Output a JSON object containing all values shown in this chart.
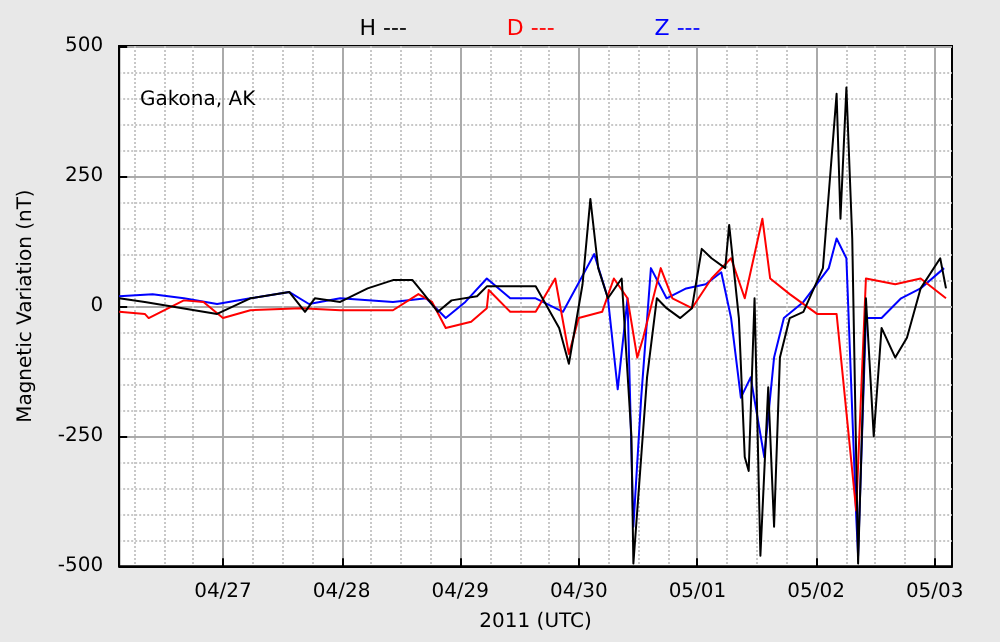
{
  "chart_data": {
    "type": "line",
    "xlabel": "2011 (UTC)",
    "ylabel": "Magnetic Variation (nT)",
    "annotations": [
      "Gakona, AK"
    ],
    "legend": "top",
    "grid": true,
    "marker": "none",
    "line_style": "solid",
    "xlim": [
      "2011-04-26T03:00",
      "2011-05-03T03:30"
    ],
    "xticks": [
      {
        "value": "2011-04-26T06:00",
        "label": null
      },
      {
        "value": "2011-04-26T12:00",
        "label": null
      },
      {
        "value": "2011-04-26T18:00",
        "label": null
      },
      {
        "value": "2011-04-27",
        "label": "04/27"
      },
      {
        "value": "2011-04-27T06:00",
        "label": null
      },
      {
        "value": "2011-04-27T12:00",
        "label": null
      },
      {
        "value": "2011-04-27T18:00",
        "label": null
      },
      {
        "value": "2011-04-28",
        "label": "04/28"
      },
      {
        "value": "2011-04-28T06:00",
        "label": null
      },
      {
        "value": "2011-04-28T12:00",
        "label": null
      },
      {
        "value": "2011-04-28T18:00",
        "label": null
      },
      {
        "value": "2011-04-29",
        "label": "04/29"
      },
      {
        "value": "2011-04-29T06:00",
        "label": null
      },
      {
        "value": "2011-04-29T12:00",
        "label": null
      },
      {
        "value": "2011-04-29T18:00",
        "label": null
      },
      {
        "value": "2011-04-30",
        "label": "04/30"
      },
      {
        "value": "2011-04-30T06:00",
        "label": null
      },
      {
        "value": "2011-04-30T12:00",
        "label": null
      },
      {
        "value": "2011-04-30T18:00",
        "label": null
      },
      {
        "value": "2011-05-01",
        "label": "05/01"
      },
      {
        "value": "2011-05-01T06:00",
        "label": null
      },
      {
        "value": "2011-05-01T12:00",
        "label": null
      },
      {
        "value": "2011-05-01T18:00",
        "label": null
      },
      {
        "value": "2011-05-02",
        "label": "05/02"
      },
      {
        "value": "2011-05-02T06:00",
        "label": null
      },
      {
        "value": "2011-05-02T12:00",
        "label": null
      },
      {
        "value": "2011-05-02T18:00",
        "label": null
      },
      {
        "value": "2011-05-03",
        "label": "05/03"
      }
    ],
    "ylim": [
      -500,
      500
    ],
    "yticks": [
      -500,
      {
        "value": -450,
        "label": null
      },
      {
        "value": -400,
        "label": null
      },
      {
        "value": -350,
        "label": null
      },
      {
        "value": -300,
        "label": null
      },
      -250,
      {
        "value": -200,
        "label": null
      },
      {
        "value": -150,
        "label": null
      },
      {
        "value": -100,
        "label": null
      },
      {
        "value": -50,
        "label": null
      },
      0,
      {
        "value": 50,
        "label": null
      },
      {
        "value": 100,
        "label": null
      },
      {
        "value": 150,
        "label": null
      },
      {
        "value": 200,
        "label": null
      },
      250,
      {
        "value": 300,
        "label": null
      },
      {
        "value": 350,
        "label": null
      },
      {
        "value": 400,
        "label": null
      },
      {
        "value": 450,
        "label": null
      },
      500
    ],
    "series": [
      {
        "name": "H ---",
        "color": "#000000",
        "x": [
          "2011-04-26T03:00",
          "2011-04-26T08:11",
          "2011-04-26T20:03",
          "2011-04-26T22:49",
          "2011-04-27T05:32",
          "2011-04-27T13:26",
          "2011-04-27T16:36",
          "2011-04-27T18:35",
          "2011-04-27T23:43",
          "2011-04-28T05:16",
          "2011-04-28T10:24",
          "2011-04-28T14:21",
          "2011-04-28T16:20",
          "2011-04-28T19:29",
          "2011-04-28T22:15",
          "2011-04-29T03:24",
          "2011-04-29T05:23",
          "2011-04-29T10:07",
          "2011-04-29T15:16",
          "2011-04-29T20:01",
          "2011-04-29T21:59",
          "2011-04-30T00:45",
          "2011-04-30T02:20",
          "2011-04-30T03:55",
          "2011-04-30T05:53",
          "2011-04-30T08:40",
          "2011-04-30T10:38",
          "2011-04-30T11:02",
          "2011-04-30T12:37",
          "2011-04-30T13:48",
          "2011-04-30T15:47",
          "2011-04-30T17:45",
          "2011-04-30T20:31",
          "2011-04-30T22:53",
          "2011-05-01T00:52",
          "2011-05-01T02:51",
          "2011-05-01T05:37",
          "2011-05-01T06:25",
          "2011-05-01T08:23",
          "2011-05-01T09:34",
          "2011-05-01T10:22",
          "2011-05-01T11:33",
          "2011-05-01T12:44",
          "2011-05-01T14:19",
          "2011-05-01T15:30",
          "2011-05-01T16:41",
          "2011-05-01T18:40",
          "2011-05-01T21:26",
          "2011-05-02T01:23",
          "2011-05-02T04:09",
          "2011-05-02T04:56",
          "2011-05-02T06:08",
          "2011-05-02T07:19",
          "2011-05-02T08:30",
          "2011-05-02T10:05",
          "2011-05-02T11:40",
          "2011-05-02T13:15",
          "2011-05-02T16:01",
          "2011-05-02T18:23",
          "2011-05-02T21:09",
          "2011-05-03T01:07",
          "2011-05-03T02:17"
        ],
        "values": [
          15,
          8,
          -11,
          -15,
          15,
          27,
          -11,
          15,
          8,
          34,
          50,
          50,
          27,
          -11,
          11,
          19,
          38,
          38,
          38,
          -42,
          -111,
          42,
          206,
          73,
          15,
          53,
          -250,
          -495,
          -290,
          -137,
          15,
          -4,
          -23,
          -4,
          110,
          92,
          73,
          156,
          -23,
          -290,
          -317,
          15,
          -480,
          -156,
          -424,
          -99,
          -23,
          -11,
          73,
          408,
          168,
          420,
          130,
          -495,
          15,
          -250,
          -42,
          -99,
          -61,
          34,
          92,
          34
        ]
      },
      {
        "name": "D ---",
        "color": "#ff0000",
        "x": [
          "2011-04-26T03:00",
          "2011-04-26T08:11",
          "2011-04-26T08:58",
          "2011-04-26T16:05",
          "2011-04-26T20:03",
          "2011-04-27T00:00",
          "2011-04-27T05:32",
          "2011-04-27T15:49",
          "2011-04-27T23:43",
          "2011-04-28T10:24",
          "2011-04-28T15:32",
          "2011-04-28T18:18",
          "2011-04-28T21:04",
          "2011-04-29T02:13",
          "2011-04-29T05:23",
          "2011-04-29T05:46",
          "2011-04-29T10:07",
          "2011-04-29T15:16",
          "2011-04-29T19:13",
          "2011-04-29T21:59",
          "2011-04-29T23:58",
          "2011-04-30T04:43",
          "2011-04-30T07:05",
          "2011-04-30T09:51",
          "2011-04-30T11:49",
          "2011-04-30T13:01",
          "2011-04-30T16:34",
          "2011-04-30T18:56",
          "2011-04-30T22:53",
          "2011-05-01T02:51",
          "2011-05-01T06:48",
          "2011-05-01T09:34",
          "2011-05-01T13:08",
          "2011-05-01T14:43",
          "2011-05-01T18:40",
          "2011-05-02T00:12",
          "2011-05-02T04:09",
          "2011-05-02T08:07",
          "2011-05-02T10:05",
          "2011-05-02T16:01",
          "2011-05-02T21:09",
          "2011-05-03T02:17"
        ],
        "values": [
          -11,
          -15,
          -23,
          11,
          8,
          -23,
          -8,
          -4,
          -8,
          -8,
          23,
          8,
          -42,
          -30,
          -4,
          31,
          -11,
          -11,
          53,
          -92,
          -23,
          -11,
          53,
          15,
          -99,
          -61,
          73,
          15,
          -4,
          53,
          92,
          15,
          168,
          53,
          23,
          -15,
          -15,
          -393,
          53,
          42,
          53,
          15
        ]
      },
      {
        "name": "Z ---",
        "color": "#0000ff",
        "x": [
          "2011-04-26T03:00",
          "2011-04-26T09:46",
          "2011-04-26T16:05",
          "2011-04-26T22:49",
          "2011-04-27T05:32",
          "2011-04-27T13:26",
          "2011-04-27T17:24",
          "2011-04-27T23:43",
          "2011-04-28T10:24",
          "2011-04-28T17:07",
          "2011-04-28T21:04",
          "2011-04-29T01:02",
          "2011-04-29T05:23",
          "2011-04-29T10:07",
          "2011-04-29T15:16",
          "2011-04-29T20:48",
          "2011-04-30T03:07",
          "2011-04-30T05:53",
          "2011-04-30T07:52",
          "2011-04-30T09:51",
          "2011-04-30T11:02",
          "2011-04-30T12:37",
          "2011-04-30T14:35",
          "2011-04-30T17:45",
          "2011-04-30T21:43",
          "2011-05-01T01:40",
          "2011-05-01T04:49",
          "2011-05-01T06:48",
          "2011-05-01T08:47",
          "2011-05-01T10:46",
          "2011-05-01T13:31",
          "2011-05-01T15:30",
          "2011-05-01T17:29",
          "2011-05-01T21:26",
          "2011-05-02T02:34",
          "2011-05-02T04:09",
          "2011-05-02T06:08",
          "2011-05-02T08:07",
          "2011-05-02T08:30",
          "2011-05-02T10:05",
          "2011-05-02T13:15",
          "2011-05-02T17:12",
          "2011-05-02T21:09",
          "2011-05-03T01:54"
        ],
        "values": [
          19,
          23,
          15,
          4,
          15,
          27,
          4,
          15,
          8,
          15,
          -23,
          8,
          53,
          15,
          15,
          -11,
          100,
          15,
          -160,
          15,
          -424,
          -176,
          73,
          15,
          34,
          42,
          65,
          -23,
          -176,
          -137,
          -290,
          -99,
          -23,
          8,
          73,
          130,
          92,
          -404,
          -480,
          -23,
          -23,
          15,
          34,
          73
        ]
      }
    ]
  }
}
